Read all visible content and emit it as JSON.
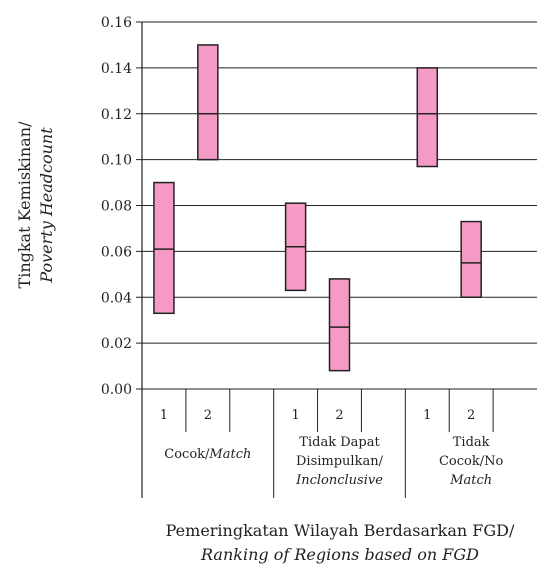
{
  "chart_data": {
    "type": "box",
    "ylabel": [
      "Tingkat Kemiskinan/",
      "Poverty Headcount"
    ],
    "xlabel": [
      "Pemeringkatan Wilayah Berdasarkan FGD/",
      "Ranking of Regions based on FGD"
    ],
    "ylim": [
      0,
      0.16
    ],
    "yticks": [
      "0.00",
      "0.02",
      "0.04",
      "0.06",
      "0.08",
      "0.10",
      "0.12",
      "0.14",
      "0.16"
    ],
    "grid": true,
    "box_color": "#f59ac6",
    "groups": [
      {
        "label_lines": [
          "Cocok/",
          "Match"
        ],
        "categories": [
          {
            "label": "1",
            "low": 0.033,
            "mid": 0.061,
            "high": 0.09
          },
          {
            "label": "2",
            "low": 0.1,
            "mid": 0.12,
            "high": 0.15
          }
        ]
      },
      {
        "label_lines": [
          "Tidak Dapat",
          "Disimpulkan/",
          "Inclonclusive"
        ],
        "categories": [
          {
            "label": "1",
            "low": 0.043,
            "mid": 0.062,
            "high": 0.081
          },
          {
            "label": "2",
            "low": 0.008,
            "mid": 0.027,
            "high": 0.048
          }
        ]
      },
      {
        "label_lines": [
          "Tidak",
          "Cocok/No",
          "Match"
        ],
        "categories": [
          {
            "label": "1",
            "low": 0.097,
            "mid": 0.12,
            "high": 0.14
          },
          {
            "label": "2",
            "low": 0.04,
            "mid": 0.055,
            "high": 0.073
          }
        ]
      }
    ]
  }
}
